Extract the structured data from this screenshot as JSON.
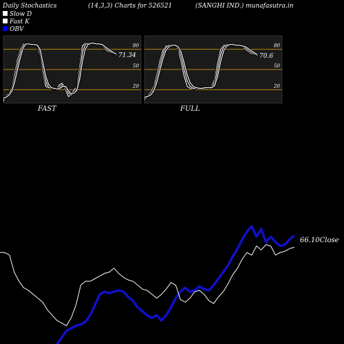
{
  "header": {
    "left": "Daily Stochastics",
    "mid": "(14,3,3) Charts for 526521",
    "right": "(SANGHI IND.) munafasutra.in"
  },
  "legend": [
    {
      "label": "Slow  D",
      "color": "#ffffff"
    },
    {
      "label": "Fast K",
      "color": "#ffffff"
    },
    {
      "label": "OBV",
      "color": "#0000ff"
    }
  ],
  "colors": {
    "background": "#000000",
    "panel_bg": "#1a1a1a",
    "level_line": "#b8860b",
    "stoch_line": "#ffffff",
    "obv_line": "#1010c8",
    "price_line": "#ffffff"
  },
  "chart_data": [
    {
      "type": "line",
      "panel": "FAST",
      "label": "FAST",
      "ylim": [
        0,
        100
      ],
      "levels": [
        20,
        50,
        80
      ],
      "tick_labels": [
        "80",
        "50",
        "20"
      ],
      "last_value_label": "71.34",
      "series": [
        {
          "values": [
            3,
            12,
            15,
            25,
            45,
            65,
            80,
            88,
            89,
            87,
            86,
            88,
            84,
            70,
            45,
            25,
            22,
            22,
            20,
            22,
            28,
            30,
            20,
            10,
            12,
            20,
            24,
            55,
            85,
            89,
            88,
            89,
            88,
            89,
            87,
            85,
            80,
            77,
            75,
            73,
            71.3
          ]
        },
        {
          "values": [
            5,
            10,
            14,
            22,
            38,
            58,
            75,
            86,
            89,
            88,
            86,
            87,
            86,
            75,
            52,
            32,
            23,
            22,
            21,
            21,
            24,
            28,
            24,
            15,
            12,
            16,
            22,
            45,
            75,
            87,
            89,
            89,
            88,
            88,
            88,
            86,
            82,
            79,
            76,
            74,
            72
          ]
        },
        {
          "values": [
            8,
            9,
            12,
            18,
            32,
            50,
            68,
            82,
            88,
            88,
            87,
            87,
            86,
            80,
            60,
            40,
            28,
            23,
            22,
            21,
            22,
            25,
            25,
            19,
            14,
            15,
            19,
            35,
            62,
            80,
            87,
            89,
            89,
            88,
            88,
            87,
            84,
            81,
            78,
            75,
            73
          ]
        }
      ]
    },
    {
      "type": "line",
      "panel": "FULL",
      "label": "FULL",
      "ylim": [
        0,
        100
      ],
      "levels": [
        20,
        50,
        80
      ],
      "tick_labels": [
        "80",
        "50",
        "20"
      ],
      "last_value_label": "70.6",
      "series": [
        {
          "values": [
            5,
            10,
            16,
            25,
            42,
            62,
            78,
            85,
            86,
            86,
            85,
            80,
            62,
            40,
            25,
            22,
            21,
            22,
            22,
            24,
            24,
            22,
            25,
            35,
            60,
            80,
            86,
            87,
            87,
            86,
            86,
            86,
            84,
            80,
            77,
            74,
            72,
            70.6
          ]
        },
        {
          "values": [
            7,
            9,
            13,
            21,
            36,
            55,
            72,
            83,
            86,
            86,
            85,
            83,
            70,
            50,
            33,
            25,
            22,
            22,
            22,
            23,
            24,
            23,
            23,
            30,
            50,
            72,
            84,
            87,
            87,
            86,
            86,
            86,
            85,
            82,
            79,
            76,
            73,
            71
          ]
        },
        {
          "values": [
            9,
            10,
            12,
            18,
            30,
            48,
            65,
            78,
            84,
            86,
            86,
            84,
            76,
            60,
            42,
            30,
            25,
            23,
            22,
            22,
            23,
            23,
            23,
            26,
            40,
            62,
            78,
            85,
            87,
            87,
            86,
            86,
            85,
            84,
            81,
            78,
            75,
            72
          ]
        }
      ]
    },
    {
      "type": "line",
      "panel": "OBV and price",
      "close_label": "66.10Close",
      "series": [
        {
          "name": "OBV",
          "values": [
            0,
            0,
            0,
            0,
            0,
            0,
            0,
            0,
            0,
            0,
            0,
            0,
            0,
            5,
            10,
            12,
            14,
            15,
            17,
            22,
            30,
            38,
            40,
            39,
            40,
            41,
            40,
            36,
            33,
            28,
            25,
            22,
            20,
            22,
            18,
            22,
            28,
            35,
            40,
            43,
            40,
            41,
            44,
            42,
            41,
            45,
            50,
            55,
            60,
            67,
            73,
            80,
            86,
            90,
            82,
            88,
            78,
            82,
            78,
            75,
            76,
            80,
            83
          ]
        },
        {
          "name": "Price",
          "values": [
            70,
            70,
            68,
            55,
            48,
            43,
            41,
            38,
            35,
            32,
            26,
            22,
            18,
            16,
            14,
            20,
            30,
            45,
            48,
            48,
            50,
            52,
            54,
            55,
            58,
            54,
            51,
            49,
            48,
            45,
            42,
            41,
            38,
            35,
            38,
            42,
            47,
            45,
            34,
            32,
            35,
            40,
            41,
            38,
            33,
            31,
            36,
            40,
            46,
            53,
            58,
            65,
            70,
            68,
            75,
            72,
            76,
            75,
            68,
            70,
            71,
            73,
            74
          ]
        }
      ]
    }
  ]
}
